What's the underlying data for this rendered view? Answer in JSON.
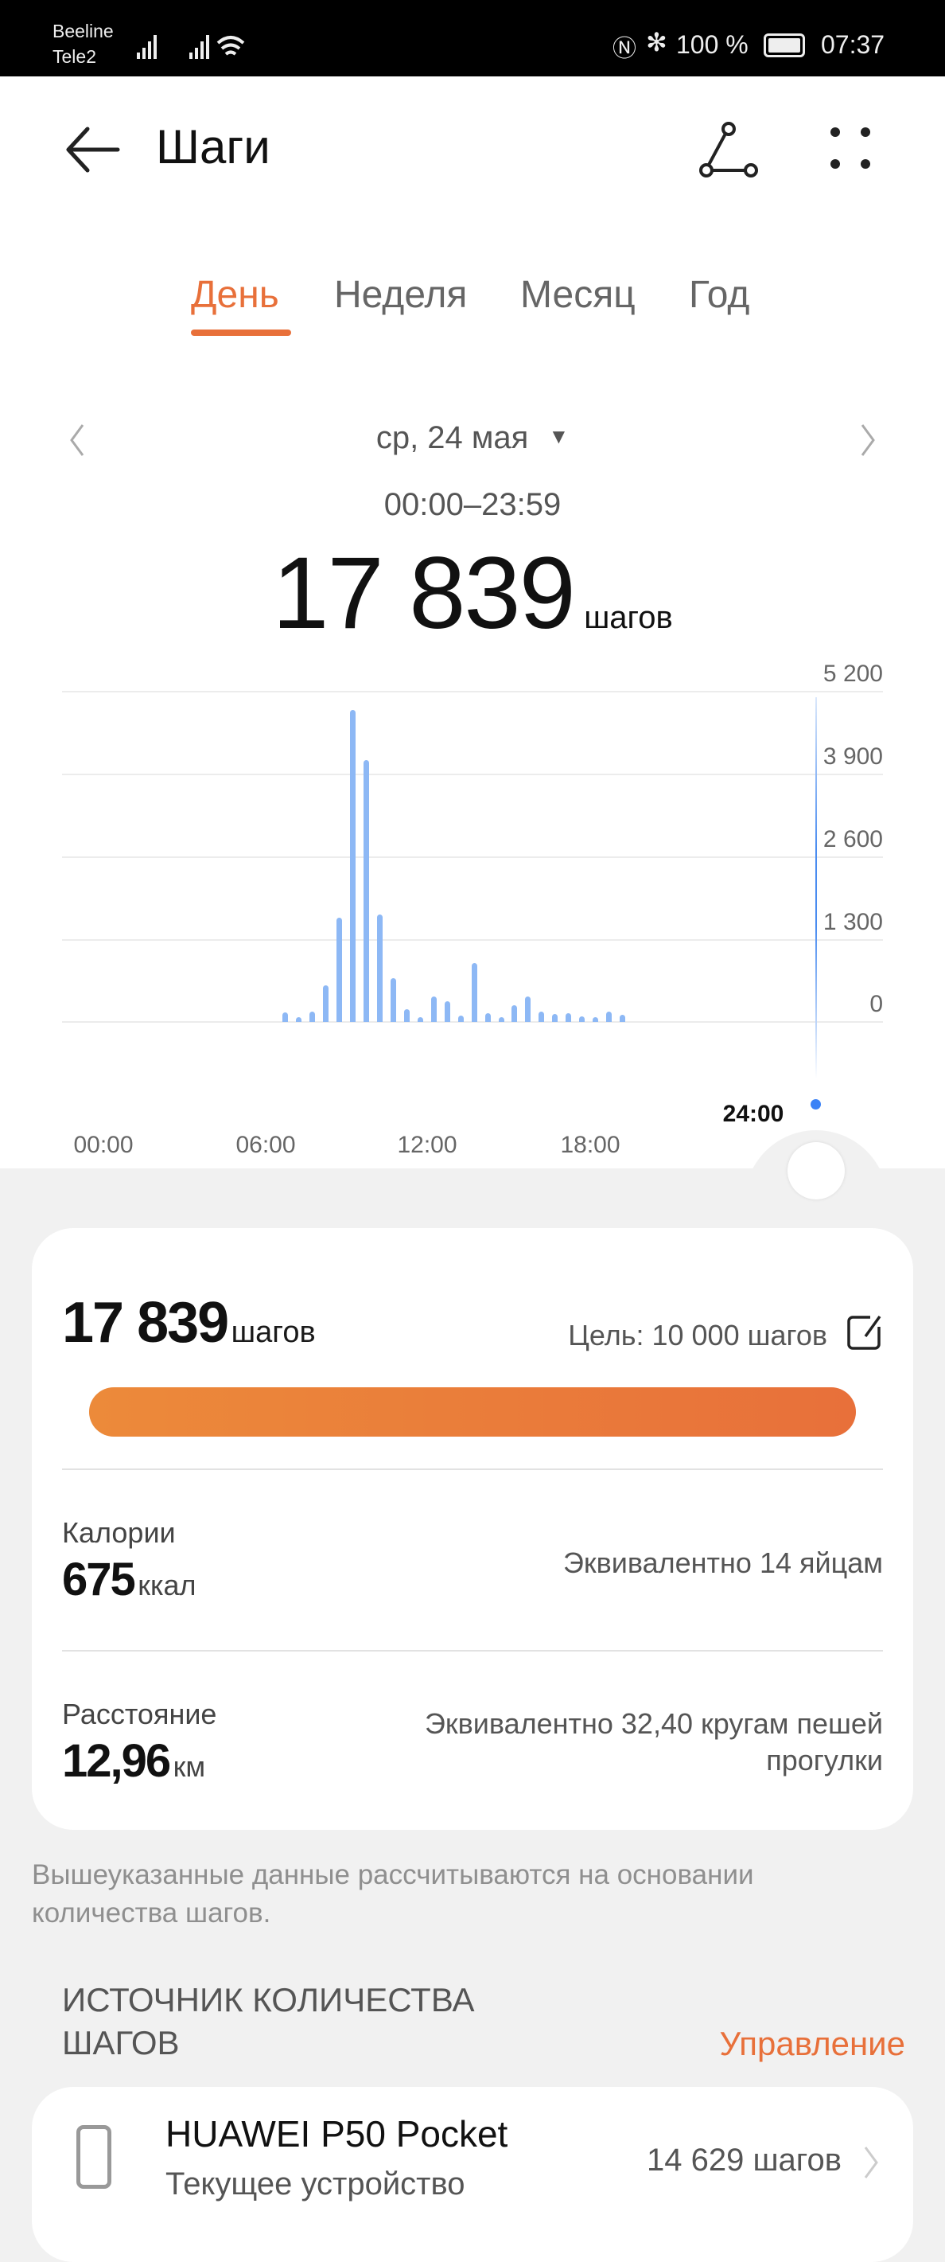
{
  "status_bar": {
    "carrier1": "Beeline",
    "carrier2": "Tele2",
    "battery": "100 %",
    "time": "07:37",
    "icons": [
      "signal-icon",
      "signal-icon",
      "wifi-icon",
      "nfc-icon",
      "bluetooth-icon",
      "battery-icon"
    ]
  },
  "header": {
    "title": "Шаги",
    "icons": [
      "back-arrow-icon",
      "share-icon",
      "more-icon"
    ]
  },
  "tabs": [
    {
      "label": "День",
      "active": true
    },
    {
      "label": "Неделя"
    },
    {
      "label": "Месяц"
    },
    {
      "label": "Год"
    }
  ],
  "accent_color": "#e8703a",
  "date": {
    "label": "ср, 24 мая",
    "range": "00:00–23:59"
  },
  "total": {
    "value": "17 839",
    "unit": "шагов"
  },
  "chart_data": {
    "type": "bar",
    "x_ticks": [
      "00:00",
      "06:00",
      "12:00",
      "18:00"
    ],
    "cursor_label": "24:00",
    "y_ticks": [
      "5 200",
      "3 900",
      "2 600",
      "1 300",
      "0"
    ],
    "ylim": [
      0,
      5200
    ],
    "grid": true,
    "interval": "30 min",
    "x": [
      "06:30",
      "07:00",
      "07:30",
      "08:00",
      "08:30",
      "09:00",
      "09:30",
      "10:00",
      "10:30",
      "11:00",
      "11:30",
      "12:00",
      "12:30",
      "13:00",
      "13:30",
      "14:00",
      "14:30",
      "15:00",
      "15:30",
      "16:00",
      "16:30",
      "17:00",
      "17:30",
      "18:00",
      "18:30",
      "19:00"
    ],
    "values": [
      146,
      38,
      157,
      580,
      1647,
      4913,
      4117,
      1690,
      688,
      200,
      81,
      395,
      330,
      103,
      932,
      141,
      38,
      265,
      395,
      157,
      130,
      141,
      92,
      38,
      157,
      108
    ],
    "bar_color": "#8db8f5",
    "cursor_color": "#3b82f6"
  },
  "summary": {
    "steps_value": "17 839",
    "steps_unit": "шагов",
    "goal": "Цель: 10 000 шагов",
    "progress_percent": 100,
    "calories_label": "Калории",
    "calories_value": "675",
    "calories_unit": "ккал",
    "calories_equiv": "Эквивалентно 14 яйцам",
    "distance_label": "Расстояние",
    "distance_value": "12,96",
    "distance_unit": "км",
    "distance_equiv_1": "Эквивалентно 32,40 кругам пешей",
    "distance_equiv_2": "прогулки"
  },
  "footnote_1": "Вышеуказанные данные рассчитываются на основании",
  "footnote_2": "количества шагов.",
  "source": {
    "heading_1": "ИСТОЧНИК КОЛИЧЕСТВА",
    "heading_2": "ШАГОВ",
    "manage": "Управление",
    "device_name": "HUAWEI P50 Pocket",
    "device_sub": "Текущее устройство",
    "device_steps": "14 629 шагов"
  }
}
